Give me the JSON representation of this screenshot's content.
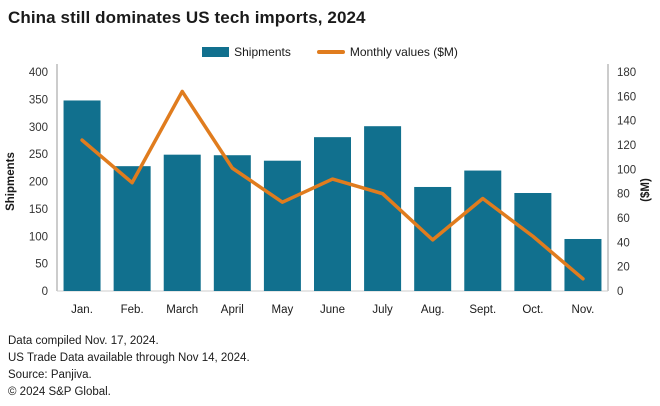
{
  "title": "China still dominates US tech imports, 2024",
  "colors": {
    "bar_teal": "#11708e",
    "line_orange": "#e07c1e",
    "axis_gray": "#cccccc",
    "tick_text": "#333333",
    "text_dark": "#1a1a1a"
  },
  "chart_data": {
    "type": "bar",
    "title": "China still dominates US tech imports, 2024",
    "categories": [
      "Jan.",
      "Feb.",
      "March",
      "April",
      "May",
      "June",
      "July",
      "Aug.",
      "Sept.",
      "Oct.",
      "Nov."
    ],
    "series": [
      {
        "name": "Shipments",
        "type": "bar",
        "axis": "left",
        "color": "#11708e",
        "values": [
          348,
          228,
          249,
          248,
          238,
          281,
          301,
          190,
          220,
          179,
          95
        ]
      },
      {
        "name": "Monthly values ($M)",
        "type": "line",
        "axis": "right",
        "color": "#e07c1e",
        "values": [
          124,
          89,
          164,
          101,
          73,
          92,
          80,
          42,
          76,
          45,
          10
        ]
      }
    ],
    "left_axis": {
      "label": "Shipments",
      "min": 0,
      "max": 400,
      "step": 50
    },
    "right_axis": {
      "label": "($M)",
      "min": 0,
      "max": 180,
      "step": 20
    },
    "grid": false,
    "legend_position": "top"
  },
  "footer": {
    "lines": [
      "Data compiled Nov. 17, 2024.",
      "US Trade Data available through Nov 14, 2024.",
      "Source: Panjiva.",
      "© 2024 S&P Global."
    ]
  }
}
